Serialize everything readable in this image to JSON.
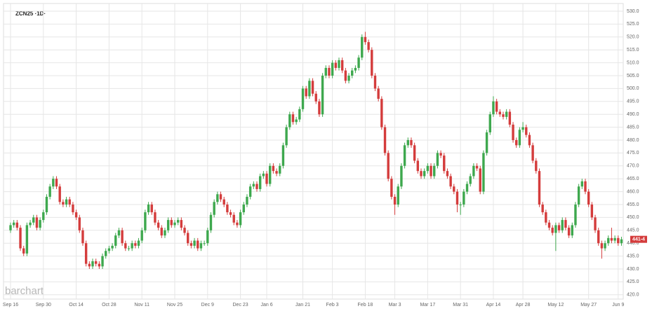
{
  "chart_data": {
    "type": "candlestick",
    "title": "ZCN25 ·1D·",
    "watermark": "barchart",
    "last_label": "441-4",
    "up_color": "#3ea84e",
    "down_color": "#d43c3c",
    "grid": true,
    "categories": [
      "Sep 16",
      null,
      null,
      null,
      null,
      null,
      null,
      null,
      null,
      null,
      "Sep 30",
      null,
      null,
      null,
      null,
      null,
      null,
      null,
      null,
      null,
      "Oct 14",
      null,
      null,
      null,
      null,
      null,
      null,
      null,
      null,
      null,
      "Oct 28",
      null,
      null,
      null,
      null,
      null,
      null,
      null,
      null,
      null,
      "Nov 11",
      null,
      null,
      null,
      null,
      null,
      null,
      null,
      null,
      null,
      "Nov 25",
      null,
      null,
      null,
      null,
      null,
      null,
      null,
      null,
      null,
      "Dec 9",
      null,
      null,
      null,
      null,
      null,
      null,
      null,
      null,
      null,
      "Dec 23",
      null,
      null,
      null,
      null,
      null,
      null,
      null,
      "Jan 6",
      null,
      null,
      null,
      null,
      null,
      null,
      null,
      null,
      null,
      null,
      "Jan 21",
      null,
      null,
      null,
      null,
      null,
      null,
      null,
      null,
      "Feb 3",
      null,
      null,
      null,
      null,
      null,
      null,
      null,
      null,
      null,
      "Feb 18",
      null,
      null,
      null,
      null,
      null,
      null,
      null,
      null,
      "Mar 3",
      null,
      null,
      null,
      null,
      null,
      null,
      null,
      null,
      null,
      "Mar 17",
      null,
      null,
      null,
      null,
      null,
      null,
      null,
      null,
      null,
      "Mar 31",
      null,
      null,
      null,
      null,
      null,
      null,
      null,
      null,
      null,
      "Apr 14",
      null,
      null,
      null,
      null,
      null,
      null,
      null,
      null,
      "Apr 28",
      null,
      null,
      null,
      null,
      null,
      null,
      null,
      null,
      null,
      "May 12",
      null,
      null,
      null,
      null,
      null,
      null,
      null,
      null,
      null,
      "May 27",
      null,
      null,
      null,
      null,
      null,
      null,
      null,
      null,
      "Jun 9",
      null
    ],
    "open": [
      445,
      447,
      448,
      446,
      438,
      436,
      447,
      448,
      450,
      446,
      449,
      452,
      458,
      462,
      465,
      462,
      456,
      455,
      457,
      455,
      452,
      450,
      445,
      440,
      432,
      431,
      433,
      432,
      431,
      435,
      437,
      438,
      439,
      443,
      445,
      440,
      438,
      438,
      440,
      439,
      441,
      445,
      452,
      455,
      452,
      448,
      446,
      443,
      445,
      449,
      447,
      448,
      449,
      446,
      444,
      440,
      439,
      441,
      438,
      440,
      440,
      445,
      451,
      456,
      459,
      457,
      455,
      452,
      451,
      448,
      447,
      452,
      455,
      458,
      462,
      463,
      461,
      466,
      467,
      463,
      470,
      468,
      467,
      470,
      478,
      485,
      490,
      487,
      488,
      492,
      500,
      497,
      503,
      498,
      495,
      490,
      505,
      508,
      505,
      510,
      508,
      511,
      507,
      503,
      505,
      507,
      508,
      512,
      520,
      518,
      515,
      505,
      500,
      496,
      485,
      475,
      465,
      458,
      455,
      462,
      470,
      478,
      480,
      478,
      472,
      468,
      466,
      468,
      470,
      466,
      470,
      475,
      474,
      468,
      466,
      462,
      460,
      455,
      455,
      460,
      463,
      466,
      470,
      469,
      460,
      475,
      483,
      490,
      495,
      491,
      490,
      489,
      491,
      486,
      480,
      478,
      484,
      485,
      482,
      478,
      472,
      468,
      455,
      452,
      448,
      446,
      444,
      447,
      445,
      449,
      446,
      443,
      447,
      455,
      462,
      464,
      460,
      455,
      450,
      445,
      440,
      438,
      440,
      442,
      441,
      442,
      440
    ],
    "high": [
      448,
      449,
      449,
      447,
      439,
      448,
      449,
      451,
      451,
      450,
      453,
      459,
      463,
      466,
      466,
      463,
      457,
      458,
      458,
      456,
      453,
      451,
      446,
      441,
      433,
      434,
      434,
      433,
      436,
      438,
      439,
      440,
      444,
      446,
      446,
      441,
      439,
      441,
      441,
      442,
      446,
      453,
      456,
      456,
      453,
      449,
      447,
      446,
      450,
      450,
      449,
      450,
      450,
      447,
      445,
      441,
      442,
      442,
      441,
      441,
      446,
      452,
      457,
      460,
      460,
      458,
      456,
      453,
      452,
      449,
      453,
      456,
      459,
      463,
      464,
      464,
      467,
      468,
      468,
      471,
      471,
      469,
      471,
      479,
      486,
      491,
      491,
      489,
      493,
      501,
      501,
      504,
      504,
      499,
      496,
      506,
      509,
      509,
      511,
      511,
      512,
      512,
      508,
      506,
      508,
      509,
      513,
      521,
      522,
      519,
      516,
      506,
      501,
      497,
      486,
      476,
      466,
      459,
      463,
      471,
      479,
      481,
      481,
      479,
      473,
      469,
      469,
      471,
      471,
      471,
      476,
      476,
      475,
      469,
      467,
      463,
      461,
      456,
      461,
      464,
      467,
      471,
      471,
      470,
      476,
      484,
      491,
      497,
      496,
      492,
      491,
      492,
      492,
      487,
      481,
      485,
      487,
      486,
      483,
      479,
      473,
      469,
      456,
      453,
      449,
      447,
      448,
      448,
      450,
      450,
      447,
      448,
      456,
      463,
      465,
      465,
      461,
      456,
      451,
      446,
      441,
      441,
      443,
      446,
      443,
      443,
      442.5
    ],
    "low": [
      444,
      446,
      445,
      437,
      435,
      435,
      446,
      447,
      445,
      445,
      448,
      451,
      457,
      461,
      461,
      455,
      454,
      454,
      454,
      451,
      449,
      444,
      439,
      431,
      430,
      430,
      431,
      430,
      430,
      434,
      436,
      437,
      438,
      442,
      439,
      437,
      437,
      437,
      438,
      438,
      440,
      444,
      451,
      451,
      447,
      445,
      442,
      442,
      444,
      446,
      446,
      447,
      445,
      443,
      439,
      438,
      438,
      437,
      437,
      439,
      439,
      444,
      450,
      455,
      456,
      454,
      451,
      450,
      447,
      446,
      446,
      451,
      454,
      457,
      461,
      460,
      460,
      465,
      462,
      462,
      467,
      466,
      466,
      469,
      477,
      484,
      486,
      486,
      487,
      491,
      496,
      496,
      497,
      494,
      489,
      489,
      504,
      504,
      504,
      507,
      507,
      506,
      502,
      502,
      504,
      506,
      507,
      511,
      517,
      514,
      504,
      499,
      495,
      484,
      474,
      464,
      457,
      451,
      454,
      461,
      469,
      477,
      477,
      471,
      467,
      465,
      465,
      467,
      465,
      465,
      469,
      473,
      467,
      465,
      461,
      459,
      452,
      451,
      454,
      459,
      462,
      465,
      468,
      459,
      459,
      474,
      482,
      489,
      490,
      489,
      488,
      488,
      485,
      479,
      477,
      477,
      483,
      481,
      477,
      471,
      467,
      454,
      451,
      447,
      445,
      443,
      437,
      444,
      444,
      445,
      442,
      442,
      446,
      454,
      461,
      459,
      454,
      449,
      444,
      439,
      434,
      437,
      439,
      440,
      440,
      439,
      439
    ],
    "close": [
      447,
      448,
      446,
      438,
      436,
      447,
      448,
      450,
      446,
      449,
      452,
      458,
      462,
      465,
      462,
      456,
      455,
      457,
      455,
      452,
      450,
      445,
      440,
      432,
      431,
      433,
      432,
      431,
      435,
      437,
      438,
      439,
      443,
      445,
      440,
      438,
      438,
      440,
      439,
      441,
      445,
      452,
      455,
      452,
      448,
      446,
      443,
      445,
      449,
      447,
      448,
      449,
      446,
      444,
      440,
      439,
      441,
      438,
      440,
      440,
      445,
      451,
      456,
      459,
      457,
      455,
      452,
      451,
      448,
      447,
      452,
      455,
      458,
      462,
      463,
      461,
      466,
      467,
      463,
      470,
      468,
      467,
      470,
      478,
      485,
      490,
      487,
      488,
      492,
      500,
      497,
      503,
      498,
      495,
      490,
      505,
      508,
      505,
      510,
      508,
      511,
      507,
      503,
      505,
      507,
      508,
      512,
      520,
      518,
      515,
      505,
      500,
      496,
      485,
      475,
      465,
      458,
      455,
      462,
      470,
      478,
      480,
      478,
      472,
      468,
      466,
      468,
      470,
      466,
      470,
      475,
      474,
      468,
      466,
      462,
      460,
      455,
      455,
      460,
      463,
      466,
      470,
      469,
      460,
      475,
      483,
      490,
      495,
      491,
      490,
      489,
      491,
      486,
      480,
      478,
      484,
      485,
      482,
      478,
      472,
      468,
      455,
      452,
      448,
      446,
      444,
      447,
      445,
      449,
      446,
      443,
      447,
      455,
      462,
      464,
      460,
      455,
      450,
      445,
      440,
      438,
      440,
      442,
      441,
      442,
      440,
      441.5
    ],
    "ylim": [
      420,
      530
    ],
    "yticks": [
      {
        "value": 420,
        "label": "420.0"
      },
      {
        "value": 425,
        "label": "425.0"
      },
      {
        "value": 430,
        "label": "430.0"
      },
      {
        "value": 435,
        "label": "435.0"
      },
      {
        "value": 440,
        "label": "440.0"
      },
      {
        "value": 445,
        "label": "445.0"
      },
      {
        "value": 450,
        "label": "450.0"
      },
      {
        "value": 455,
        "label": "455.0"
      },
      {
        "value": 460,
        "label": "460.0"
      },
      {
        "value": 465,
        "label": "465.0"
      },
      {
        "value": 470,
        "label": "470.0"
      },
      {
        "value": 475,
        "label": "475.0"
      },
      {
        "value": 480,
        "label": "480.0"
      },
      {
        "value": 485,
        "label": "485.0"
      },
      {
        "value": 490,
        "label": "490.0"
      },
      {
        "value": 495,
        "label": "495.0"
      },
      {
        "value": 500,
        "label": "500.0"
      },
      {
        "value": 505,
        "label": "505.0"
      },
      {
        "value": 510,
        "label": "510.0"
      },
      {
        "value": 515,
        "label": "515.0"
      },
      {
        "value": 520,
        "label": "520.0"
      },
      {
        "value": 525,
        "label": "525.0"
      },
      {
        "value": 530,
        "label": "530.0"
      }
    ]
  }
}
